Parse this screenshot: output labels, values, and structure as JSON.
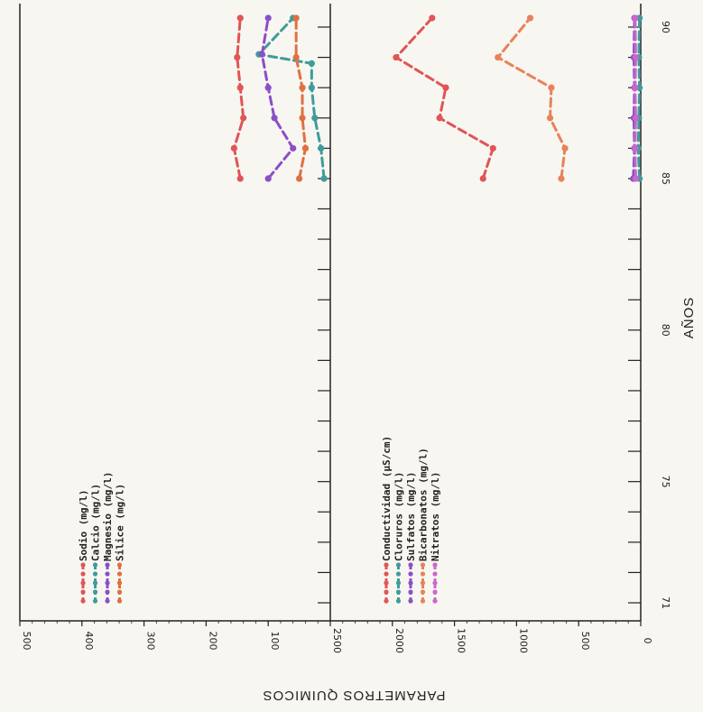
{
  "chart_data": {
    "type": "line",
    "orientation": "rotated-90-clockwise",
    "x_axis": {
      "label": "AÑOS",
      "min": 70.5,
      "max": 92,
      "ticks": [
        71,
        75,
        80,
        85,
        90
      ],
      "tick_labels": [
        "71",
        "75",
        "80",
        "85",
        "90"
      ]
    },
    "panels": [
      {
        "name": "left-panel",
        "ylim": [
          0,
          500
        ],
        "ticks": [
          500,
          400,
          300,
          200,
          100
        ],
        "tick_labels": [
          "500",
          "400",
          "300",
          "200",
          "100"
        ],
        "legend": [
          "Sodio (mg/l)",
          "Calcio (mg/l)",
          "Magnesio (mg/l)",
          "Silice (mg/l)"
        ],
        "series": [
          {
            "name": "Sodio (mg/l)",
            "color": "#e05555",
            "x": [
              85,
              86,
              87,
              88,
              89,
              90.3
            ],
            "y": [
              145,
              155,
              140,
              145,
              150,
              145
            ]
          },
          {
            "name": "Calcio (mg/l)",
            "color": "#3f9c9a",
            "x": [
              85,
              86,
              87,
              88,
              88.8,
              89.1,
              90.3
            ],
            "y": [
              10,
              15,
              25,
              30,
              30,
              115,
              60
            ]
          },
          {
            "name": "Magnesio (mg/l)",
            "color": "#8a4fc9",
            "x": [
              85,
              86,
              87,
              88,
              89.1,
              90.3
            ],
            "y": [
              100,
              60,
              90,
              100,
              110,
              100
            ]
          },
          {
            "name": "Silice (mg/l)",
            "color": "#e07040",
            "x": [
              85,
              86,
              87,
              88,
              89,
              90.3
            ],
            "y": [
              50,
              40,
              45,
              45,
              55,
              55
            ]
          }
        ]
      },
      {
        "name": "right-panel",
        "ylim": [
          0,
          2500
        ],
        "ticks": [
          2500,
          2000,
          1500,
          1000,
          500,
          0
        ],
        "tick_labels": [
          "2500",
          "2000",
          "1500",
          "1000",
          "500",
          "0"
        ],
        "legend": [
          "Conductividad (µS/cm)",
          "Cloruros (mg/l)",
          "Sulfatos (mg/l)",
          "Bicarbonatos (mg/l)",
          "Nitratos (mg/l)"
        ],
        "series": [
          {
            "name": "Conductividad (µS/cm)",
            "color": "#e05555",
            "x": [
              85,
              86,
              87,
              88,
              89,
              90.3
            ],
            "y": [
              1270,
              1190,
              1620,
              1570,
              1970,
              1680
            ]
          },
          {
            "name": "Cloruros (mg/l)",
            "color": "#3f9c9a",
            "x": [
              85,
              86,
              87,
              88,
              89,
              90.3
            ],
            "y": [
              10,
              20,
              15,
              10,
              15,
              10
            ]
          },
          {
            "name": "Sulfatos (mg/l)",
            "color": "#8a4fc9",
            "x": [
              85,
              86,
              87,
              88,
              89,
              90.3
            ],
            "y": [
              60,
              50,
              55,
              50,
              55,
              50
            ]
          },
          {
            "name": "Bicarbonatos (mg/l)",
            "color": "#e8825a",
            "x": [
              85,
              86,
              87,
              88,
              89,
              90.3
            ],
            "y": [
              640,
              610,
              730,
              720,
              1150,
              890
            ]
          },
          {
            "name": "Nitratos (mg/l)",
            "color": "#cc66cc",
            "x": [
              85,
              86,
              87,
              88,
              89,
              90.3
            ],
            "y": [
              40,
              45,
              40,
              45,
              40,
              45
            ]
          }
        ]
      }
    ],
    "y_title": "PARAMETROS QUIMICOS",
    "grid": false
  }
}
